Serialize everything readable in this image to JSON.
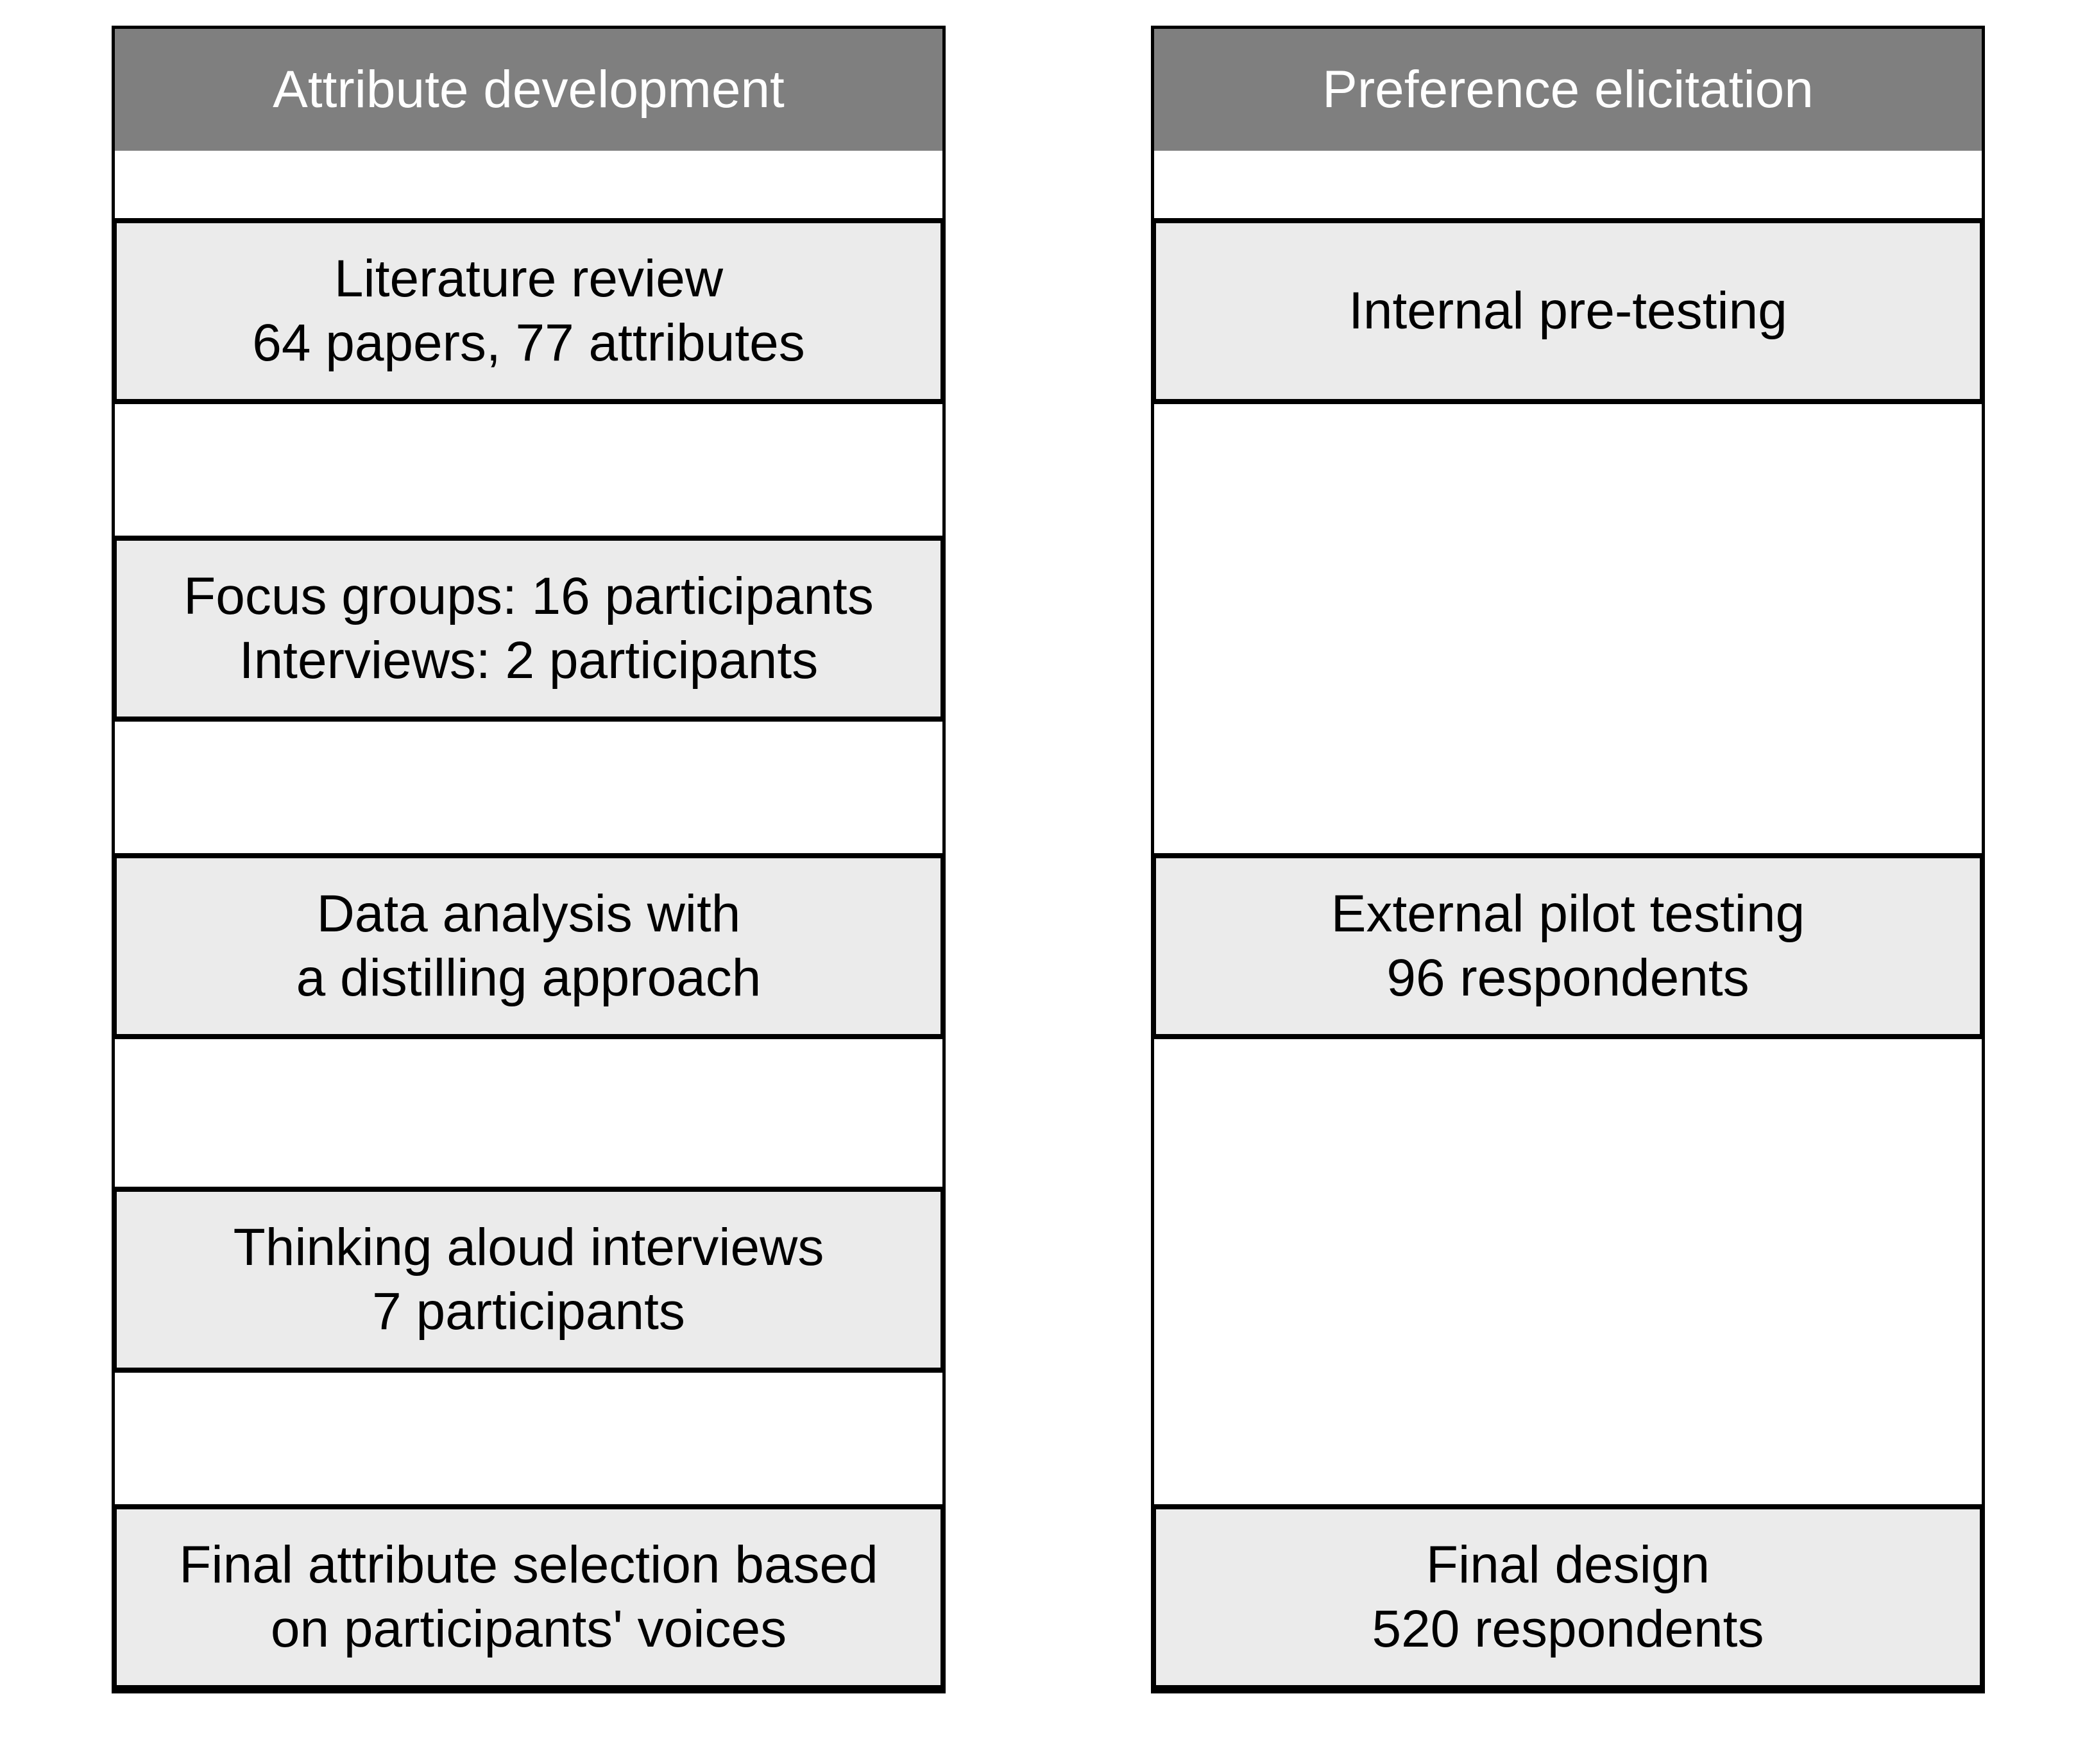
{
  "columns": [
    {
      "header": "Attribute development",
      "boxes": [
        {
          "line1": "Literature review",
          "line2": "64 papers, 77 attributes"
        },
        {
          "line1": "Focus groups: 16 participants",
          "line2": "Interviews: 2 participants"
        },
        {
          "line1": "Data analysis with",
          "line2": "a distilling approach"
        },
        {
          "line1": "Thinking aloud interviews",
          "line2": "7 participants"
        },
        {
          "line1": "Final attribute selection based",
          "line2": "on participants' voices"
        }
      ]
    },
    {
      "header": "Preference elicitation",
      "boxes": [
        {
          "line1": "Internal pre-testing"
        },
        {
          "line1": "External pilot testing",
          "line2": "96 respondents"
        },
        {
          "line1": "Final design",
          "line2": "520 respondents"
        }
      ]
    }
  ],
  "colors": {
    "header_fill": "#7f7f7f",
    "header_text": "#ffffff",
    "box_fill": "#ebebeb",
    "stroke": "#000000"
  }
}
